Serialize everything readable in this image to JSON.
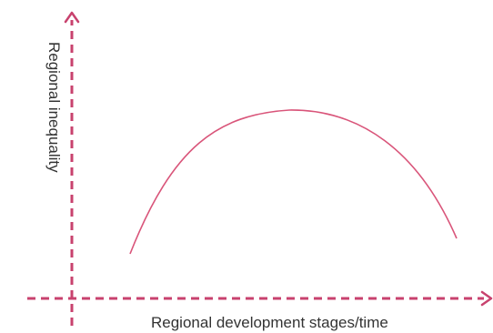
{
  "figure": {
    "ylabel": "Regional inequality",
    "xlabel": "Regional development stages/time",
    "colors": {
      "axis": "#c8426e",
      "curve": "#d9557a",
      "text": "#333333"
    },
    "curve_shape": "inverted-u"
  }
}
